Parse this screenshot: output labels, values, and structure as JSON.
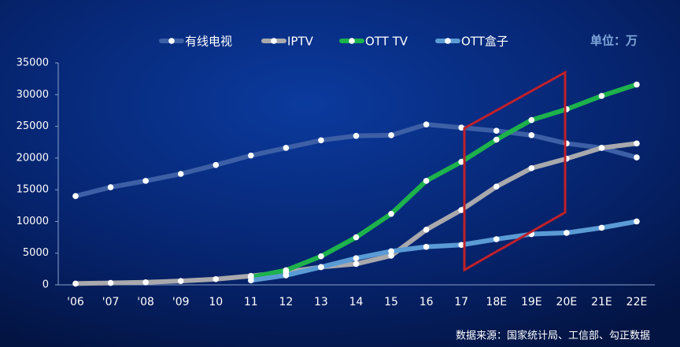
{
  "chart_data": {
    "type": "line",
    "unit_label": "单位：万",
    "source": "数据来源：国家统计局、工信部、勾正数据",
    "categories": [
      "'06",
      "'07",
      "'08",
      "'09",
      "10",
      "11",
      "12",
      "13",
      "14",
      "15",
      "16",
      "17",
      "18E",
      "19E",
      "20E",
      "21E",
      "22E"
    ],
    "ylim": [
      0,
      35000
    ],
    "yticks": [
      0,
      5000,
      10000,
      15000,
      20000,
      25000,
      30000,
      35000
    ],
    "series": [
      {
        "name": "有线电视",
        "color": "#3c5fa6",
        "values": [
          14000,
          15400,
          16400,
          17500,
          18900,
          20400,
          21600,
          22800,
          23500,
          23600,
          25300,
          24800,
          24300,
          23600,
          22300,
          21600,
          20100
        ]
      },
      {
        "name": "IPTV",
        "color": "#a9a9ad",
        "values": [
          200,
          300,
          400,
          600,
          900,
          1400,
          2000,
          2800,
          3300,
          4600,
          8700,
          11800,
          15500,
          18400,
          19900,
          21600,
          22300
        ]
      },
      {
        "name": "OTT TV",
        "color": "#1db24c",
        "values": [
          null,
          null,
          null,
          null,
          null,
          1200,
          2300,
          4500,
          7500,
          11200,
          16400,
          19400,
          22900,
          26000,
          27700,
          29800,
          31600
        ]
      },
      {
        "name": "OTT盒子",
        "color": "#5b9bd5",
        "values": [
          null,
          null,
          null,
          null,
          null,
          700,
          1500,
          2800,
          4200,
          5300,
          6000,
          6300,
          7200,
          8000,
          8200,
          9000,
          10000
        ]
      }
    ]
  }
}
